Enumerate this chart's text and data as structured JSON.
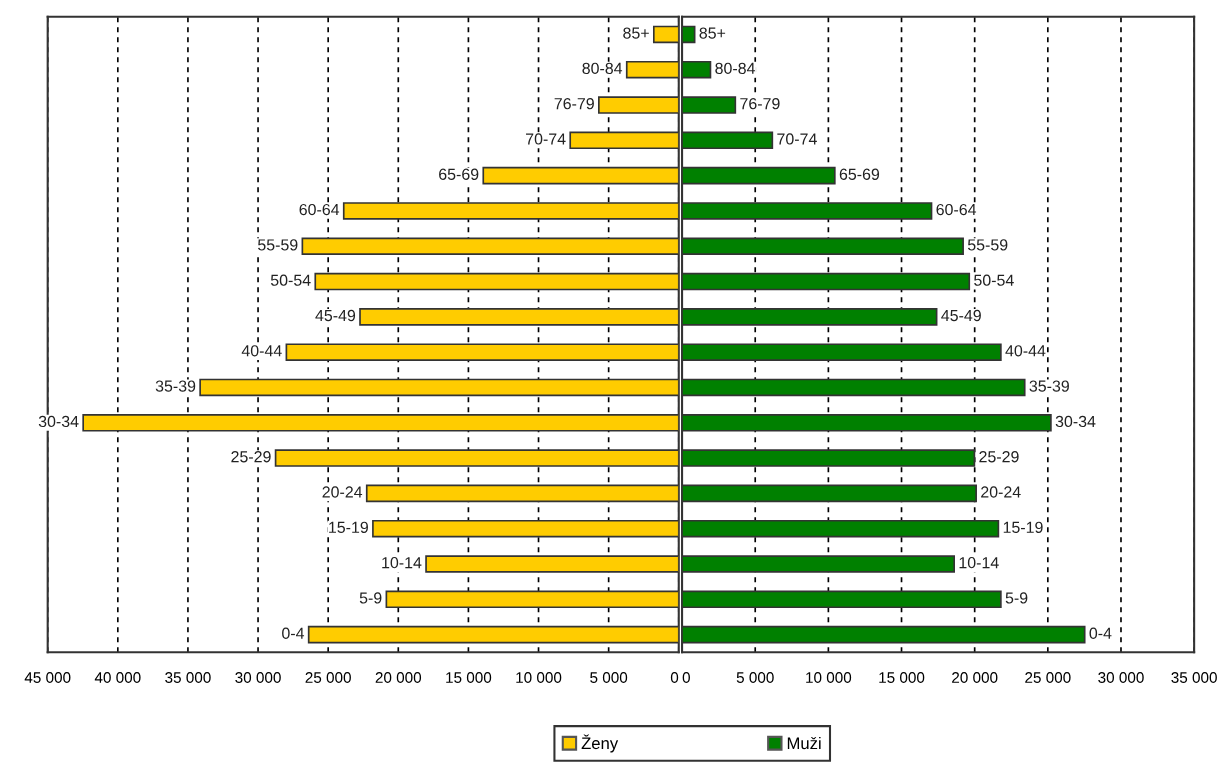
{
  "chart_data": [
    {
      "type": "bar",
      "orientation": "horizontal",
      "categories": [
        "85+",
        "80-84",
        "76-79",
        "70-74",
        "65-69",
        "60-64",
        "55-59",
        "50-54",
        "45-49",
        "40-44",
        "35-39",
        "30-34",
        "25-29",
        "20-24",
        "15-19",
        "10-14",
        "5-9",
        "0-4"
      ],
      "series": [
        {
          "name": "Ženy",
          "color": "#ffcc00",
          "values": [
            1780,
            3710,
            5700,
            7740,
            13940,
            23890,
            26840,
            25920,
            22730,
            27980,
            34130,
            42470,
            28750,
            22250,
            21810,
            18020,
            20850,
            26390
          ]
        }
      ],
      "xlim": [
        45000,
        0
      ],
      "xticks": [
        {
          "value": 45000,
          "label": "45 000"
        },
        {
          "value": 40000,
          "label": "40 000"
        },
        {
          "value": 35000,
          "label": "35 000"
        },
        {
          "value": 30000,
          "label": "30 000"
        },
        {
          "value": 25000,
          "label": "25 000"
        },
        {
          "value": 20000,
          "label": "20 000"
        },
        {
          "value": 15000,
          "label": "15 000"
        },
        {
          "value": 10000,
          "label": "10 000"
        },
        {
          "value": 5000,
          "label": "5 000"
        },
        0
      ],
      "grid": "x",
      "tick_labels": "x",
      "legend": "bottom"
    },
    {
      "type": "bar",
      "orientation": "horizontal",
      "categories": [
        "85+",
        "80-84",
        "76-79",
        "70-74",
        "65-69",
        "60-64",
        "55-59",
        "50-54",
        "45-49",
        "40-44",
        "35-39",
        "30-34",
        "25-29",
        "20-24",
        "15-19",
        "10-14",
        "5-9",
        "0-4"
      ],
      "series": [
        {
          "name": "Muži",
          "color": "#008000",
          "values": [
            860,
            1940,
            3640,
            6170,
            10440,
            17050,
            19210,
            19630,
            17400,
            21790,
            23420,
            25210,
            19980,
            20100,
            21620,
            18600,
            21790,
            27520
          ]
        }
      ],
      "xlim": [
        0,
        35000
      ],
      "xticks": [
        0,
        {
          "value": 5000,
          "label": "5 000"
        },
        {
          "value": 10000,
          "label": "10 000"
        },
        {
          "value": 15000,
          "label": "15 000"
        },
        {
          "value": 20000,
          "label": "20 000"
        },
        {
          "value": 25000,
          "label": "25 000"
        },
        {
          "value": 30000,
          "label": "30 000"
        },
        {
          "value": 35000,
          "label": "35 000"
        }
      ],
      "grid": "x",
      "tick_labels": "x",
      "legend": "bottom"
    }
  ]
}
